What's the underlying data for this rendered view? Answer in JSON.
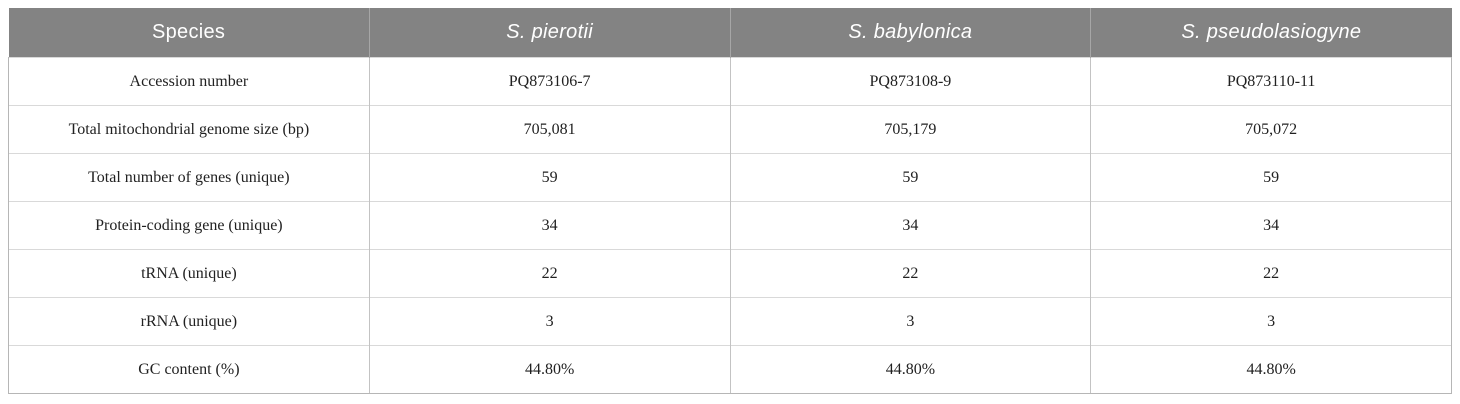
{
  "colors": {
    "header_bg": "#838383",
    "header_text": "#ffffff",
    "header_divider": "#a6a6a6",
    "body_text": "#212121",
    "column_border": "#c3c3c3",
    "row_border": "#d9d9d9",
    "outer_border": "#b6b6b6"
  },
  "chart_data": {
    "type": "table",
    "columns": [
      "Species",
      "S. pierotii",
      "S. babylonica",
      "S. pseudolasiogyne"
    ],
    "italic_columns": [
      false,
      true,
      true,
      true
    ],
    "rows": [
      [
        "Accession number",
        "PQ873106-7",
        "PQ873108-9",
        "PQ873110-11"
      ],
      [
        "Total mitochondrial genome size (bp)",
        "705,081",
        "705,179",
        "705,072"
      ],
      [
        "Total number of genes (unique)",
        "59",
        "59",
        "59"
      ],
      [
        "Protein-coding gene (unique)",
        "34",
        "34",
        "34"
      ],
      [
        "tRNA (unique)",
        "22",
        "22",
        "22"
      ],
      [
        "rRNA (unique)",
        "3",
        "3",
        "3"
      ],
      [
        "GC content (%)",
        "44.80%",
        "44.80%",
        "44.80%"
      ]
    ]
  }
}
